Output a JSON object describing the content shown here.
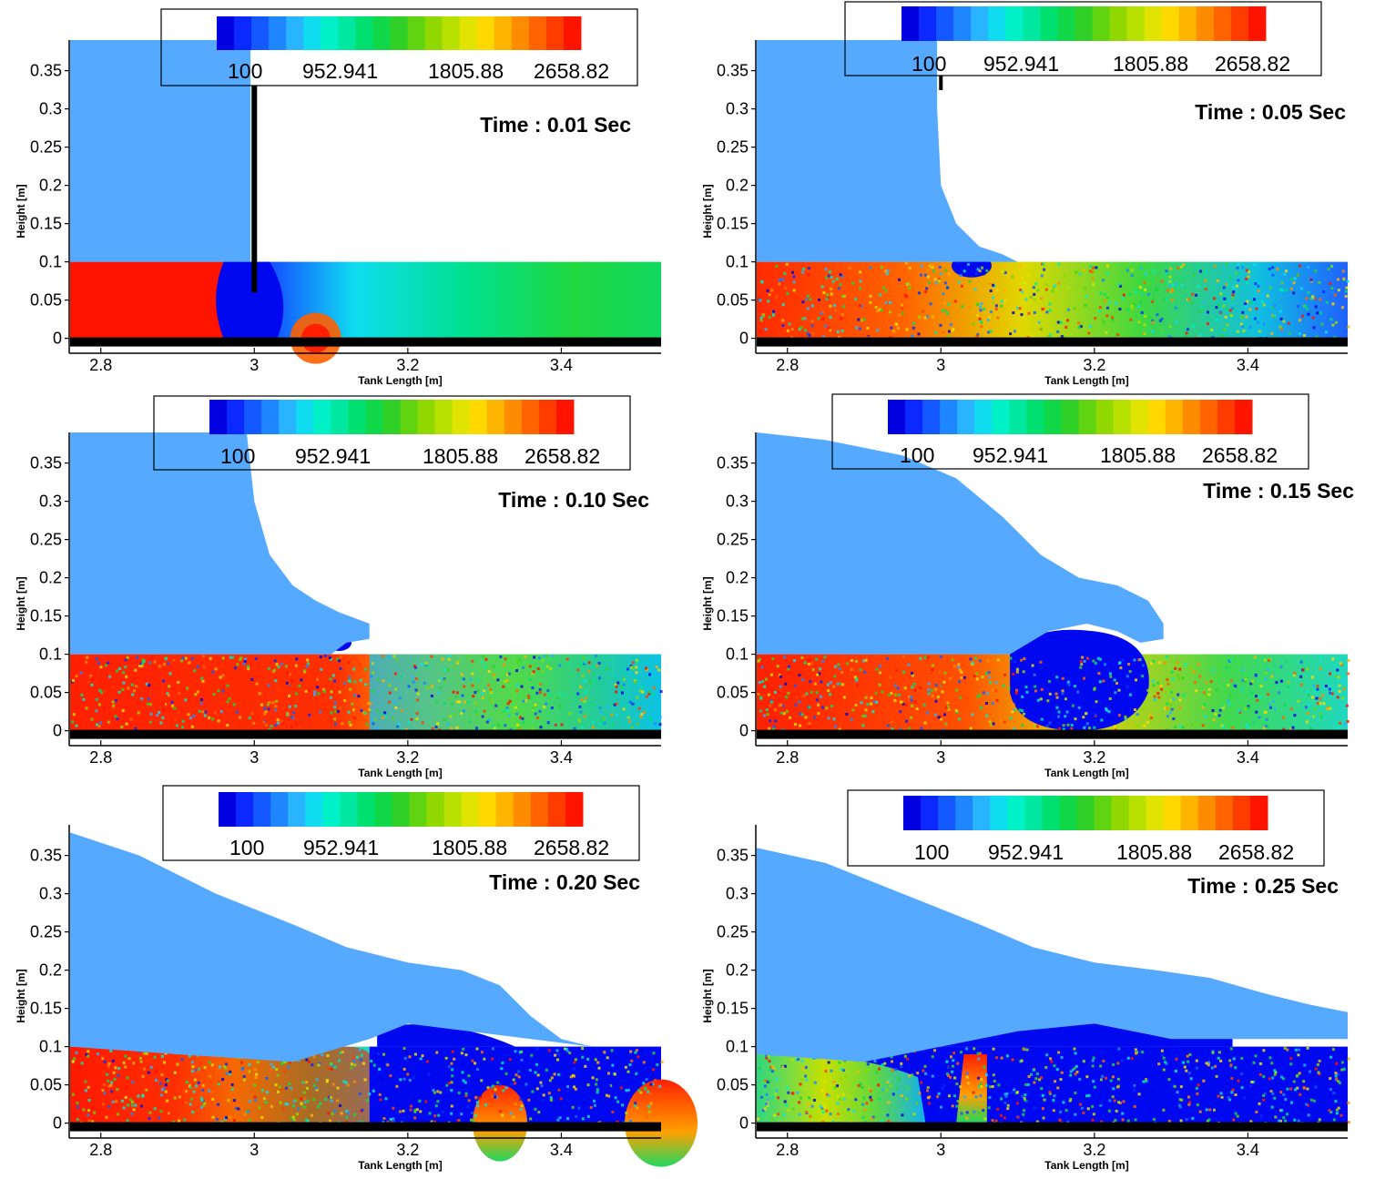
{
  "figure": {
    "description_type": "multi-panel density field snapshots of a lock-exchange / dam-break flow"
  },
  "legend": {
    "labels": [
      "100",
      "952.941",
      "1805.88",
      "2658.82"
    ],
    "colors": [
      "#0000e0",
      "#0a28ff",
      "#1458ff",
      "#1e86ff",
      "#28b4ff",
      "#10dcf0",
      "#00f0c8",
      "#00e8a0",
      "#00e070",
      "#10d848",
      "#30d028",
      "#60d410",
      "#90d800",
      "#b8e000",
      "#e0e400",
      "#ffd800",
      "#ffb400",
      "#ff8c00",
      "#ff6400",
      "#ff3c00",
      "#ff1400"
    ]
  },
  "chart_data": [
    {
      "type": "heatmap",
      "panel": "0.01",
      "time_label": "Time : 0.01 Sec",
      "xlabel": "Tank Length [m]",
      "ylabel": "Height [m]",
      "xlim": [
        2.76,
        3.53
      ],
      "ylim": [
        -0.01,
        0.39
      ],
      "x_ticks": [
        "2.8",
        "3",
        "3.2",
        "3.4"
      ],
      "x_tick_values": [
        2.8,
        3.0,
        3.2,
        3.4
      ],
      "y_ticks": [
        "0",
        "0.05",
        "0.1",
        "0.15",
        "0.2",
        "0.25",
        "0.3",
        "0.35"
      ],
      "y_tick_values": [
        0,
        0.05,
        0.1,
        0.15,
        0.2,
        0.25,
        0.3,
        0.35
      ],
      "light_fluid_color": "#55aaff",
      "bottom_bar_color": "#000000",
      "light_outline": [
        [
          2.76,
          0.39
        ],
        [
          2.995,
          0.39
        ],
        [
          2.995,
          0.1
        ],
        [
          2.76,
          0.1
        ]
      ],
      "dense_layer_top": 0.1,
      "gate_x": 3.0
    },
    {
      "type": "heatmap",
      "panel": "0.05",
      "time_label": "Time : 0.05 Sec",
      "xlabel": "Tank Length [m]",
      "ylabel": "Height [m]",
      "xlim": [
        2.76,
        3.53
      ],
      "ylim": [
        -0.01,
        0.39
      ],
      "x_ticks": [
        "2.8",
        "3",
        "3.2",
        "3.4"
      ],
      "x_tick_values": [
        2.8,
        3.0,
        3.2,
        3.4
      ],
      "y_ticks": [
        "0",
        "0.05",
        "0.1",
        "0.15",
        "0.2",
        "0.25",
        "0.3",
        "0.35"
      ],
      "y_tick_values": [
        0,
        0.05,
        0.1,
        0.15,
        0.2,
        0.25,
        0.3,
        0.35
      ],
      "light_fluid_color": "#55aaff",
      "bottom_bar_color": "#000000",
      "light_outline": [
        [
          2.76,
          0.39
        ],
        [
          2.995,
          0.39
        ],
        [
          2.995,
          0.3
        ],
        [
          3.0,
          0.2
        ],
        [
          3.02,
          0.15
        ],
        [
          3.05,
          0.12
        ],
        [
          3.08,
          0.11
        ],
        [
          3.1,
          0.1
        ],
        [
          2.76,
          0.1
        ]
      ],
      "dense_layer_top": 0.1
    },
    {
      "type": "heatmap",
      "panel": "0.10",
      "time_label": "Time : 0.10 Sec",
      "xlabel": "Tank Length [m]",
      "ylabel": "Height [m]",
      "xlim": [
        2.76,
        3.53
      ],
      "ylim": [
        -0.01,
        0.39
      ],
      "x_ticks": [
        "2.8",
        "3",
        "3.2",
        "3.4"
      ],
      "x_tick_values": [
        2.8,
        3.0,
        3.2,
        3.4
      ],
      "y_ticks": [
        "0",
        "0.05",
        "0.1",
        "0.15",
        "0.2",
        "0.25",
        "0.3",
        "0.35"
      ],
      "y_tick_values": [
        0,
        0.05,
        0.1,
        0.15,
        0.2,
        0.25,
        0.3,
        0.35
      ],
      "light_fluid_color": "#55aaff",
      "bottom_bar_color": "#000000",
      "light_outline": [
        [
          2.76,
          0.39
        ],
        [
          2.99,
          0.39
        ],
        [
          3.0,
          0.3
        ],
        [
          3.02,
          0.23
        ],
        [
          3.05,
          0.19
        ],
        [
          3.08,
          0.17
        ],
        [
          3.11,
          0.155
        ],
        [
          3.15,
          0.14
        ],
        [
          3.15,
          0.12
        ],
        [
          3.12,
          0.115
        ],
        [
          3.1,
          0.1
        ],
        [
          2.76,
          0.1
        ]
      ],
      "dense_layer_top": 0.1
    },
    {
      "type": "heatmap",
      "panel": "0.15",
      "time_label": "Time : 0.15 Sec",
      "xlabel": "Tank Length [m]",
      "ylabel": "Height [m]",
      "xlim": [
        2.76,
        3.53
      ],
      "ylim": [
        -0.01,
        0.39
      ],
      "x_ticks": [
        "2.8",
        "3",
        "3.2",
        "3.4"
      ],
      "x_tick_values": [
        2.8,
        3.0,
        3.2,
        3.4
      ],
      "y_ticks": [
        "0",
        "0.05",
        "0.1",
        "0.15",
        "0.2",
        "0.25",
        "0.3",
        "0.35"
      ],
      "y_tick_values": [
        0,
        0.05,
        0.1,
        0.15,
        0.2,
        0.25,
        0.3,
        0.35
      ],
      "light_fluid_color": "#55aaff",
      "bottom_bar_color": "#000000",
      "light_outline": [
        [
          2.76,
          0.39
        ],
        [
          2.85,
          0.38
        ],
        [
          2.95,
          0.36
        ],
        [
          3.02,
          0.33
        ],
        [
          3.08,
          0.28
        ],
        [
          3.13,
          0.23
        ],
        [
          3.18,
          0.2
        ],
        [
          3.23,
          0.19
        ],
        [
          3.27,
          0.17
        ],
        [
          3.29,
          0.14
        ],
        [
          3.29,
          0.12
        ],
        [
          3.26,
          0.115
        ],
        [
          3.23,
          0.13
        ],
        [
          3.19,
          0.14
        ],
        [
          3.14,
          0.13
        ],
        [
          3.09,
          0.1
        ],
        [
          2.76,
          0.1
        ]
      ],
      "dense_layer_top": 0.1
    },
    {
      "type": "heatmap",
      "panel": "0.20",
      "time_label": "Time : 0.20 Sec",
      "xlabel": "Tank Length [m]",
      "ylabel": "Height [m]",
      "xlim": [
        2.76,
        3.53
      ],
      "ylim": [
        -0.01,
        0.39
      ],
      "x_ticks": [
        "2.8",
        "3",
        "3.2",
        "3.4"
      ],
      "x_tick_values": [
        2.8,
        3.0,
        3.2,
        3.4
      ],
      "y_ticks": [
        "0",
        "0.05",
        "0.1",
        "0.15",
        "0.2",
        "0.25",
        "0.3",
        "0.35"
      ],
      "y_tick_values": [
        0,
        0.05,
        0.1,
        0.15,
        0.2,
        0.25,
        0.3,
        0.35
      ],
      "light_fluid_color": "#55aaff",
      "bottom_bar_color": "#000000",
      "light_outline": [
        [
          2.76,
          0.38
        ],
        [
          2.85,
          0.35
        ],
        [
          2.95,
          0.3
        ],
        [
          3.05,
          0.26
        ],
        [
          3.12,
          0.23
        ],
        [
          3.2,
          0.21
        ],
        [
          3.27,
          0.2
        ],
        [
          3.32,
          0.18
        ],
        [
          3.36,
          0.14
        ],
        [
          3.4,
          0.11
        ],
        [
          3.44,
          0.1
        ],
        [
          3.44,
          0.1
        ],
        [
          3.2,
          0.13
        ],
        [
          3.15,
          0.11
        ],
        [
          3.05,
          0.08
        ],
        [
          2.9,
          0.09
        ],
        [
          2.76,
          0.1
        ]
      ],
      "dense_layer_top": 0.1
    },
    {
      "type": "heatmap",
      "panel": "0.25",
      "time_label": "Time : 0.25 Sec",
      "xlabel": "Tank Length [m]",
      "ylabel": "Height [m]",
      "xlim": [
        2.76,
        3.53
      ],
      "ylim": [
        -0.01,
        0.39
      ],
      "x_ticks": [
        "2.8",
        "3",
        "3.2",
        "3.4"
      ],
      "x_tick_values": [
        2.8,
        3.0,
        3.2,
        3.4
      ],
      "y_ticks": [
        "0",
        "0.05",
        "0.1",
        "0.15",
        "0.2",
        "0.25",
        "0.3",
        "0.35"
      ],
      "y_tick_values": [
        0,
        0.05,
        0.1,
        0.15,
        0.2,
        0.25,
        0.3,
        0.35
      ],
      "light_fluid_color": "#55aaff",
      "bottom_bar_color": "#000000",
      "light_outline": [
        [
          2.76,
          0.36
        ],
        [
          2.85,
          0.34
        ],
        [
          2.95,
          0.3
        ],
        [
          3.05,
          0.26
        ],
        [
          3.12,
          0.23
        ],
        [
          3.2,
          0.21
        ],
        [
          3.28,
          0.2
        ],
        [
          3.35,
          0.19
        ],
        [
          3.42,
          0.17
        ],
        [
          3.48,
          0.155
        ],
        [
          3.53,
          0.145
        ],
        [
          3.53,
          0.11
        ],
        [
          3.3,
          0.11
        ],
        [
          3.2,
          0.13
        ],
        [
          3.1,
          0.12
        ],
        [
          3.0,
          0.1
        ],
        [
          2.9,
          0.08
        ],
        [
          2.76,
          0.09
        ]
      ],
      "dense_layer_top": 0.1
    }
  ]
}
